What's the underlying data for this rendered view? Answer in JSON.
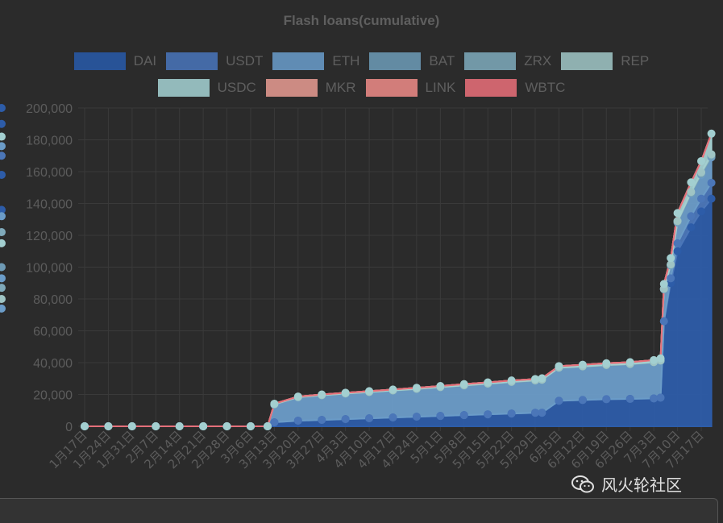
{
  "chart_data": {
    "type": "area",
    "title": "Flash loans(cumulative)",
    "stacked": true,
    "ylim": [
      0,
      200000
    ],
    "yticks": [
      "200,000",
      "180,000",
      "160,000",
      "140,000",
      "120,000",
      "100,000",
      "80,000",
      "60,000",
      "40,000",
      "20,000",
      "0"
    ],
    "xticks": [
      "1月17日",
      "1月24日",
      "1月31日",
      "2月7日",
      "2月14日",
      "2月21日",
      "2月28日",
      "3月6日",
      "3月13日",
      "3月20日",
      "3月27日",
      "4月3日",
      "4月10日",
      "4月17日",
      "4月24日",
      "5月1日",
      "5月8日",
      "5月15日",
      "5月22日",
      "5月29日",
      "6月5日",
      "6月12日",
      "6月19日",
      "6月26日",
      "7月3日",
      "7月10日",
      "7月17日"
    ],
    "x": [
      "1月17日",
      "1月24日",
      "1月31日",
      "2月7日",
      "2月14日",
      "2月21日",
      "2月28日",
      "3月6日",
      "3月11日",
      "3月13日",
      "3月20日",
      "3月27日",
      "4月3日",
      "4月10日",
      "4月17日",
      "4月24日",
      "5月1日",
      "5月8日",
      "5月15日",
      "5月22日",
      "5月29日",
      "5月31日",
      "6月5日",
      "6月12日",
      "6月19日",
      "6月26日",
      "7月3日",
      "7月5日",
      "7月6日",
      "7月8日",
      "7月10日",
      "7月14日",
      "7月17日",
      "7月20日"
    ],
    "grid": true,
    "legend_position": "top",
    "series": [
      {
        "name": "DAI",
        "color": "#2d5ca8",
        "values": [
          0,
          0,
          0,
          0,
          0,
          0,
          0,
          0,
          0,
          2500,
          3500,
          4000,
          4500,
          5000,
          5500,
          6000,
          6500,
          7000,
          7500,
          8000,
          8500,
          8500,
          16000,
          16500,
          17000,
          17200,
          17500,
          18000,
          66000,
          90000,
          110000,
          125000,
          135000,
          143000
        ]
      },
      {
        "name": "USDT",
        "color": "#4b76b8",
        "values": [
          0,
          0,
          0,
          0,
          0,
          0,
          0,
          0,
          0,
          0,
          0,
          0,
          0,
          0,
          0,
          0,
          0,
          0,
          0,
          0,
          0,
          0,
          0,
          0,
          0,
          0,
          0,
          0,
          0,
          3000,
          5000,
          7000,
          8000,
          10000
        ]
      },
      {
        "name": "ETH",
        "color": "#6b9cc8",
        "values": [
          0,
          0,
          0,
          0,
          0,
          0,
          0,
          0,
          0,
          11000,
          14500,
          15200,
          15800,
          16200,
          16700,
          17200,
          17800,
          18400,
          19000,
          19600,
          20000,
          20400,
          20500,
          20800,
          21200,
          21600,
          22500,
          23000,
          20000,
          8000,
          13000,
          14000,
          15000,
          16000
        ]
      },
      {
        "name": "BAT",
        "color": "#6e9ab5",
        "values": [
          0,
          0,
          0,
          0,
          0,
          0,
          0,
          0,
          0,
          200,
          200,
          200,
          200,
          200,
          200,
          200,
          200,
          200,
          200,
          200,
          200,
          200,
          200,
          200,
          200,
          200,
          200,
          200,
          200,
          300,
          400,
          500,
          600,
          700
        ]
      },
      {
        "name": "ZRX",
        "color": "#7fa9ba",
        "values": [
          0,
          0,
          0,
          0,
          0,
          0,
          0,
          0,
          0,
          100,
          100,
          100,
          100,
          100,
          100,
          100,
          100,
          100,
          100,
          100,
          100,
          100,
          100,
          100,
          100,
          100,
          100,
          100,
          100,
          200,
          300,
          400,
          500,
          600
        ]
      },
      {
        "name": "REP",
        "color": "#9fc4c4",
        "values": [
          0,
          0,
          0,
          0,
          0,
          0,
          0,
          0,
          0,
          100,
          100,
          100,
          100,
          100,
          100,
          100,
          100,
          100,
          100,
          100,
          100,
          100,
          100,
          100,
          100,
          100,
          100,
          100,
          100,
          200,
          300,
          400,
          500,
          600
        ]
      },
      {
        "name": "USDC",
        "color": "#a3cfd0",
        "values": [
          0,
          0,
          0,
          0,
          0,
          0,
          0,
          0,
          0,
          300,
          300,
          400,
          400,
          500,
          500,
          600,
          600,
          700,
          700,
          800,
          800,
          900,
          900,
          1000,
          1000,
          1100,
          1200,
          1300,
          3000,
          4000,
          5000,
          6000,
          7000,
          13000
        ]
      },
      {
        "name": "MKR",
        "color": "#e39a92",
        "values": [
          0,
          0,
          0,
          0,
          0,
          0,
          0,
          0,
          0,
          0,
          0,
          0,
          0,
          0,
          0,
          0,
          0,
          0,
          0,
          0,
          0,
          0,
          0,
          0,
          0,
          0,
          0,
          0,
          0,
          0,
          0,
          0,
          0,
          0
        ]
      },
      {
        "name": "LINK",
        "color": "#e98b87",
        "values": [
          0,
          0,
          0,
          0,
          0,
          0,
          0,
          0,
          0,
          0,
          0,
          0,
          0,
          0,
          0,
          0,
          0,
          0,
          0,
          0,
          0,
          0,
          0,
          0,
          0,
          0,
          0,
          0,
          0,
          0,
          0,
          0,
          0,
          0
        ]
      },
      {
        "name": "WBTC",
        "color": "#e5707a",
        "values": [
          0,
          0,
          0,
          0,
          0,
          0,
          0,
          0,
          0,
          0,
          0,
          0,
          0,
          0,
          0,
          0,
          0,
          0,
          0,
          0,
          0,
          0,
          0,
          0,
          0,
          0,
          0,
          0,
          0,
          0,
          0,
          0,
          0,
          0
        ]
      }
    ]
  },
  "legend": {
    "row1": [
      "DAI",
      "USDT",
      "ETH",
      "BAT",
      "ZRX",
      "REP"
    ],
    "row2": [
      "USDC",
      "MKR",
      "LINK",
      "WBTC"
    ]
  },
  "colors": {
    "background": "#2b2b2b",
    "grid": "#3a3a3a",
    "legend_text": "#5f5f5f",
    "tick_text": "#5c5c5c"
  },
  "watermark": {
    "text": "风火轮社区",
    "icon": "wechat-icon"
  }
}
